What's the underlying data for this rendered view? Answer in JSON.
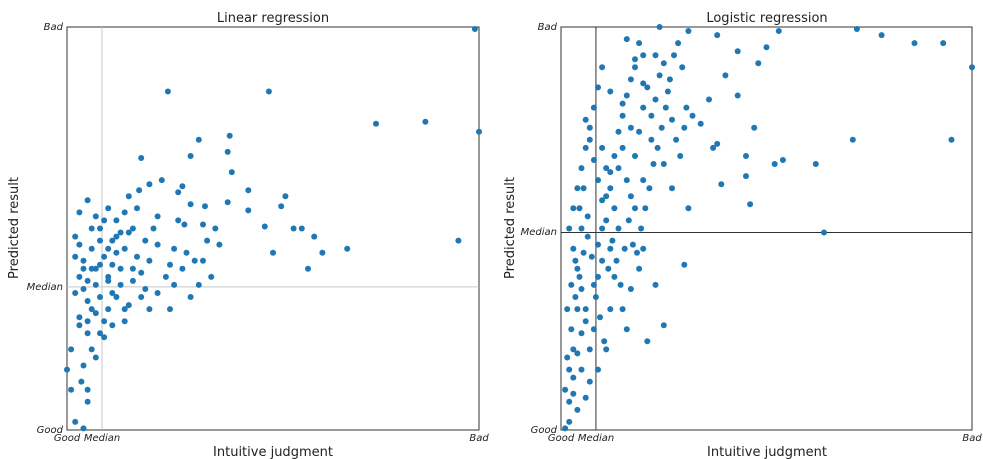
{
  "chart_data": [
    {
      "type": "scatter",
      "title": "Linear regression",
      "xlabel": "Intuitive judgment",
      "ylabel": "Predicted result",
      "x_ticks": [
        "Good",
        "Median",
        "Bad"
      ],
      "y_ticks": [
        "Good",
        "Median",
        "Bad"
      ],
      "x_tick_values": [
        0,
        0.085,
        1
      ],
      "y_tick_values": [
        0,
        0.355,
        1
      ],
      "xlim": [
        0,
        1
      ],
      "ylim": [
        0,
        1
      ],
      "median_line_color": "#c8c8c8",
      "point_color": "#1f77b4",
      "points": [
        [
          0.99,
          0.995
        ],
        [
          0.75,
          0.76
        ],
        [
          0.87,
          0.765
        ],
        [
          1.0,
          0.74
        ],
        [
          0.49,
          0.84
        ],
        [
          0.245,
          0.84
        ],
        [
          0.3,
          0.68
        ],
        [
          0.39,
          0.69
        ],
        [
          0.335,
          0.555
        ],
        [
          0.44,
          0.595
        ],
        [
          0.53,
          0.58
        ],
        [
          0.395,
          0.73
        ],
        [
          0.32,
          0.72
        ],
        [
          0.4,
          0.64
        ],
        [
          0.39,
          0.565
        ],
        [
          0.18,
          0.675
        ],
        [
          0.28,
          0.605
        ],
        [
          0.285,
          0.51
        ],
        [
          0.27,
          0.59
        ],
        [
          0.23,
          0.62
        ],
        [
          0.175,
          0.595
        ],
        [
          0.2,
          0.61
        ],
        [
          0.52,
          0.555
        ],
        [
          0.44,
          0.545
        ],
        [
          0.48,
          0.505
        ],
        [
          0.5,
          0.44
        ],
        [
          0.55,
          0.5
        ],
        [
          0.57,
          0.5
        ],
        [
          0.6,
          0.48
        ],
        [
          0.62,
          0.44
        ],
        [
          0.68,
          0.45
        ],
        [
          0.585,
          0.4
        ],
        [
          0.95,
          0.47
        ],
        [
          0.3,
          0.56
        ],
        [
          0.26,
          0.45
        ],
        [
          0.34,
          0.47
        ],
        [
          0.36,
          0.5
        ],
        [
          0.27,
          0.52
        ],
        [
          0.33,
          0.42
        ],
        [
          0.35,
          0.38
        ],
        [
          0.28,
          0.4
        ],
        [
          0.22,
          0.46
        ],
        [
          0.21,
          0.5
        ],
        [
          0.17,
          0.55
        ],
        [
          0.15,
          0.49
        ],
        [
          0.14,
          0.54
        ],
        [
          0.12,
          0.44
        ],
        [
          0.24,
          0.38
        ],
        [
          0.26,
          0.36
        ],
        [
          0.32,
          0.36
        ],
        [
          0.31,
          0.42
        ],
        [
          0.3,
          0.33
        ],
        [
          0.25,
          0.3
        ],
        [
          0.22,
          0.34
        ],
        [
          0.19,
          0.35
        ],
        [
          0.14,
          0.3
        ],
        [
          0.11,
          0.41
        ],
        [
          0.1,
          0.45
        ],
        [
          0.08,
          0.47
        ],
        [
          0.06,
          0.5
        ],
        [
          0.05,
          0.57
        ],
        [
          0.03,
          0.54
        ],
        [
          0.02,
          0.48
        ],
        [
          0.04,
          0.42
        ],
        [
          0.05,
          0.32
        ],
        [
          0.03,
          0.26
        ],
        [
          0.01,
          0.2
        ],
        [
          0.0,
          0.15
        ],
        [
          0.01,
          0.1
        ],
        [
          0.05,
          0.07
        ],
        [
          0.02,
          0.02
        ],
        [
          0.04,
          0.004
        ],
        [
          0.1,
          0.38
        ],
        [
          0.13,
          0.36
        ],
        [
          0.16,
          0.4
        ],
        [
          0.18,
          0.33
        ],
        [
          0.2,
          0.3
        ],
        [
          0.08,
          0.33
        ],
        [
          0.07,
          0.36
        ],
        [
          0.06,
          0.4
        ],
        [
          0.09,
          0.43
        ],
        [
          0.12,
          0.48
        ],
        [
          0.09,
          0.52
        ],
        [
          0.07,
          0.4
        ],
        [
          0.1,
          0.3
        ],
        [
          0.11,
          0.26
        ],
        [
          0.08,
          0.24
        ],
        [
          0.06,
          0.2
        ],
        [
          0.04,
          0.16
        ],
        [
          0.03,
          0.28
        ],
        [
          0.02,
          0.34
        ],
        [
          0.15,
          0.31
        ],
        [
          0.17,
          0.43
        ],
        [
          0.19,
          0.47
        ],
        [
          0.13,
          0.4
        ],
        [
          0.14,
          0.45
        ],
        [
          0.16,
          0.37
        ],
        [
          0.12,
          0.33
        ],
        [
          0.09,
          0.27
        ],
        [
          0.07,
          0.29
        ],
        [
          0.05,
          0.24
        ],
        [
          0.04,
          0.35
        ],
        [
          0.02,
          0.43
        ],
        [
          0.03,
          0.46
        ],
        [
          0.06,
          0.45
        ],
        [
          0.08,
          0.41
        ],
        [
          0.1,
          0.37
        ],
        [
          0.11,
          0.34
        ],
        [
          0.12,
          0.52
        ],
        [
          0.13,
          0.49
        ],
        [
          0.15,
          0.58
        ],
        [
          0.1,
          0.55
        ],
        [
          0.11,
          0.47
        ],
        [
          0.08,
          0.5
        ],
        [
          0.07,
          0.53
        ],
        [
          0.06,
          0.3
        ],
        [
          0.05,
          0.37
        ],
        [
          0.04,
          0.4
        ],
        [
          0.03,
          0.38
        ],
        [
          0.18,
          0.39
        ],
        [
          0.2,
          0.42
        ],
        [
          0.22,
          0.53
        ],
        [
          0.25,
          0.41
        ],
        [
          0.14,
          0.27
        ],
        [
          0.09,
          0.23
        ],
        [
          0.07,
          0.18
        ],
        [
          0.05,
          0.1
        ],
        [
          0.035,
          0.12
        ],
        [
          0.29,
          0.44
        ],
        [
          0.33,
          0.51
        ],
        [
          0.37,
          0.46
        ],
        [
          0.16,
          0.5
        ],
        [
          0.05,
          0.27
        ]
      ]
    },
    {
      "type": "scatter",
      "title": "Logistic regression",
      "xlabel": "Intuitive judgment",
      "ylabel": "Predicted result",
      "x_ticks": [
        "Good",
        "Median",
        "Bad"
      ],
      "y_ticks": [
        "Good",
        "Median",
        "Bad"
      ],
      "x_tick_values": [
        0,
        0.085,
        1
      ],
      "y_tick_values": [
        0,
        0.49,
        1
      ],
      "xlim": [
        0,
        1
      ],
      "ylim": [
        0,
        1
      ],
      "median_line_color": "#333333",
      "point_color": "#1f77b4",
      "points": [
        [
          0.24,
          1.0
        ],
        [
          0.31,
          0.99
        ],
        [
          0.38,
          0.98
        ],
        [
          0.43,
          0.94
        ],
        [
          0.53,
          0.99
        ],
        [
          0.78,
          0.98
        ],
        [
          0.86,
          0.96
        ],
        [
          0.72,
          0.995
        ],
        [
          0.93,
          0.96
        ],
        [
          1.0,
          0.9
        ],
        [
          0.95,
          0.72
        ],
        [
          0.71,
          0.72
        ],
        [
          0.62,
          0.66
        ],
        [
          0.54,
          0.67
        ],
        [
          0.45,
          0.68
        ],
        [
          0.37,
          0.7
        ],
        [
          0.3,
          0.75
        ],
        [
          0.43,
          0.83
        ],
        [
          0.47,
          0.75
        ],
        [
          0.31,
          0.55
        ],
        [
          0.46,
          0.56
        ],
        [
          0.64,
          0.49
        ],
        [
          0.3,
          0.41
        ],
        [
          0.23,
          0.36
        ],
        [
          0.39,
          0.61
        ],
        [
          0.45,
          0.63
        ],
        [
          0.52,
          0.66
        ],
        [
          0.16,
          0.97
        ],
        [
          0.18,
          0.9
        ],
        [
          0.2,
          0.86
        ],
        [
          0.23,
          0.93
        ],
        [
          0.1,
          0.9
        ],
        [
          0.12,
          0.84
        ],
        [
          0.15,
          0.81
        ],
        [
          0.17,
          0.75
        ],
        [
          0.22,
          0.72
        ],
        [
          0.25,
          0.66
        ],
        [
          0.27,
          0.6
        ],
        [
          0.2,
          0.62
        ],
        [
          0.18,
          0.55
        ],
        [
          0.14,
          0.5
        ],
        [
          0.12,
          0.45
        ],
        [
          0.1,
          0.42
        ],
        [
          0.09,
          0.38
        ],
        [
          0.12,
          0.3
        ],
        [
          0.16,
          0.25
        ],
        [
          0.21,
          0.22
        ],
        [
          0.25,
          0.26
        ],
        [
          0.11,
          0.2
        ],
        [
          0.09,
          0.15
        ],
        [
          0.07,
          0.12
        ],
        [
          0.06,
          0.08
        ],
        [
          0.04,
          0.05
        ],
        [
          0.02,
          0.02
        ],
        [
          0.01,
          0.004
        ],
        [
          0.03,
          0.09
        ],
        [
          0.05,
          0.15
        ],
        [
          0.07,
          0.2
        ],
        [
          0.08,
          0.25
        ],
        [
          0.06,
          0.3
        ],
        [
          0.05,
          0.35
        ],
        [
          0.04,
          0.4
        ],
        [
          0.03,
          0.45
        ],
        [
          0.02,
          0.5
        ],
        [
          0.03,
          0.55
        ],
        [
          0.04,
          0.6
        ],
        [
          0.05,
          0.65
        ],
        [
          0.06,
          0.7
        ],
        [
          0.07,
          0.75
        ],
        [
          0.08,
          0.8
        ],
        [
          0.09,
          0.85
        ],
        [
          0.1,
          0.7
        ],
        [
          0.11,
          0.65
        ],
        [
          0.12,
          0.6
        ],
        [
          0.13,
          0.55
        ],
        [
          0.14,
          0.65
        ],
        [
          0.15,
          0.7
        ],
        [
          0.16,
          0.62
        ],
        [
          0.17,
          0.58
        ],
        [
          0.18,
          0.68
        ],
        [
          0.19,
          0.74
        ],
        [
          0.2,
          0.8
        ],
        [
          0.21,
          0.85
        ],
        [
          0.22,
          0.78
        ],
        [
          0.23,
          0.82
        ],
        [
          0.24,
          0.88
        ],
        [
          0.25,
          0.91
        ],
        [
          0.26,
          0.84
        ],
        [
          0.27,
          0.77
        ],
        [
          0.28,
          0.72
        ],
        [
          0.29,
          0.68
        ],
        [
          0.2,
          0.45
        ],
        [
          0.19,
          0.4
        ],
        [
          0.17,
          0.35
        ],
        [
          0.15,
          0.3
        ],
        [
          0.13,
          0.38
        ],
        [
          0.11,
          0.52
        ],
        [
          0.1,
          0.57
        ],
        [
          0.09,
          0.62
        ],
        [
          0.08,
          0.67
        ],
        [
          0.07,
          0.72
        ],
        [
          0.06,
          0.77
        ],
        [
          0.05,
          0.5
        ],
        [
          0.04,
          0.3
        ],
        [
          0.03,
          0.2
        ],
        [
          0.02,
          0.15
        ],
        [
          0.01,
          0.1
        ],
        [
          0.015,
          0.3
        ],
        [
          0.025,
          0.36
        ],
        [
          0.035,
          0.42
        ],
        [
          0.045,
          0.55
        ],
        [
          0.055,
          0.6
        ],
        [
          0.065,
          0.48
        ],
        [
          0.075,
          0.43
        ],
        [
          0.085,
          0.33
        ],
        [
          0.095,
          0.28
        ],
        [
          0.105,
          0.22
        ],
        [
          0.115,
          0.4
        ],
        [
          0.125,
          0.47
        ],
        [
          0.135,
          0.42
        ],
        [
          0.145,
          0.36
        ],
        [
          0.155,
          0.45
        ],
        [
          0.165,
          0.52
        ],
        [
          0.175,
          0.46
        ],
        [
          0.185,
          0.44
        ],
        [
          0.195,
          0.5
        ],
        [
          0.205,
          0.55
        ],
        [
          0.215,
          0.6
        ],
        [
          0.225,
          0.66
        ],
        [
          0.235,
          0.7
        ],
        [
          0.245,
          0.75
        ],
        [
          0.255,
          0.8
        ],
        [
          0.265,
          0.87
        ],
        [
          0.275,
          0.93
        ],
        [
          0.285,
          0.96
        ],
        [
          0.295,
          0.9
        ],
        [
          0.305,
          0.8
        ],
        [
          0.32,
          0.78
        ],
        [
          0.34,
          0.76
        ],
        [
          0.36,
          0.82
        ],
        [
          0.38,
          0.71
        ],
        [
          0.4,
          0.88
        ],
        [
          0.48,
          0.91
        ],
        [
          0.5,
          0.95
        ],
        [
          0.015,
          0.18
        ],
        [
          0.025,
          0.25
        ],
        [
          0.035,
          0.33
        ],
        [
          0.045,
          0.38
        ],
        [
          0.055,
          0.44
        ],
        [
          0.065,
          0.53
        ],
        [
          0.02,
          0.07
        ],
        [
          0.03,
          0.13
        ],
        [
          0.04,
          0.19
        ],
        [
          0.05,
          0.24
        ],
        [
          0.06,
          0.27
        ],
        [
          0.08,
          0.36
        ],
        [
          0.09,
          0.46
        ],
        [
          0.1,
          0.5
        ],
        [
          0.11,
          0.58
        ],
        [
          0.12,
          0.64
        ],
        [
          0.13,
          0.68
        ],
        [
          0.14,
          0.74
        ],
        [
          0.15,
          0.78
        ],
        [
          0.16,
          0.83
        ],
        [
          0.17,
          0.87
        ],
        [
          0.18,
          0.92
        ],
        [
          0.19,
          0.96
        ],
        [
          0.2,
          0.93
        ]
      ]
    }
  ]
}
